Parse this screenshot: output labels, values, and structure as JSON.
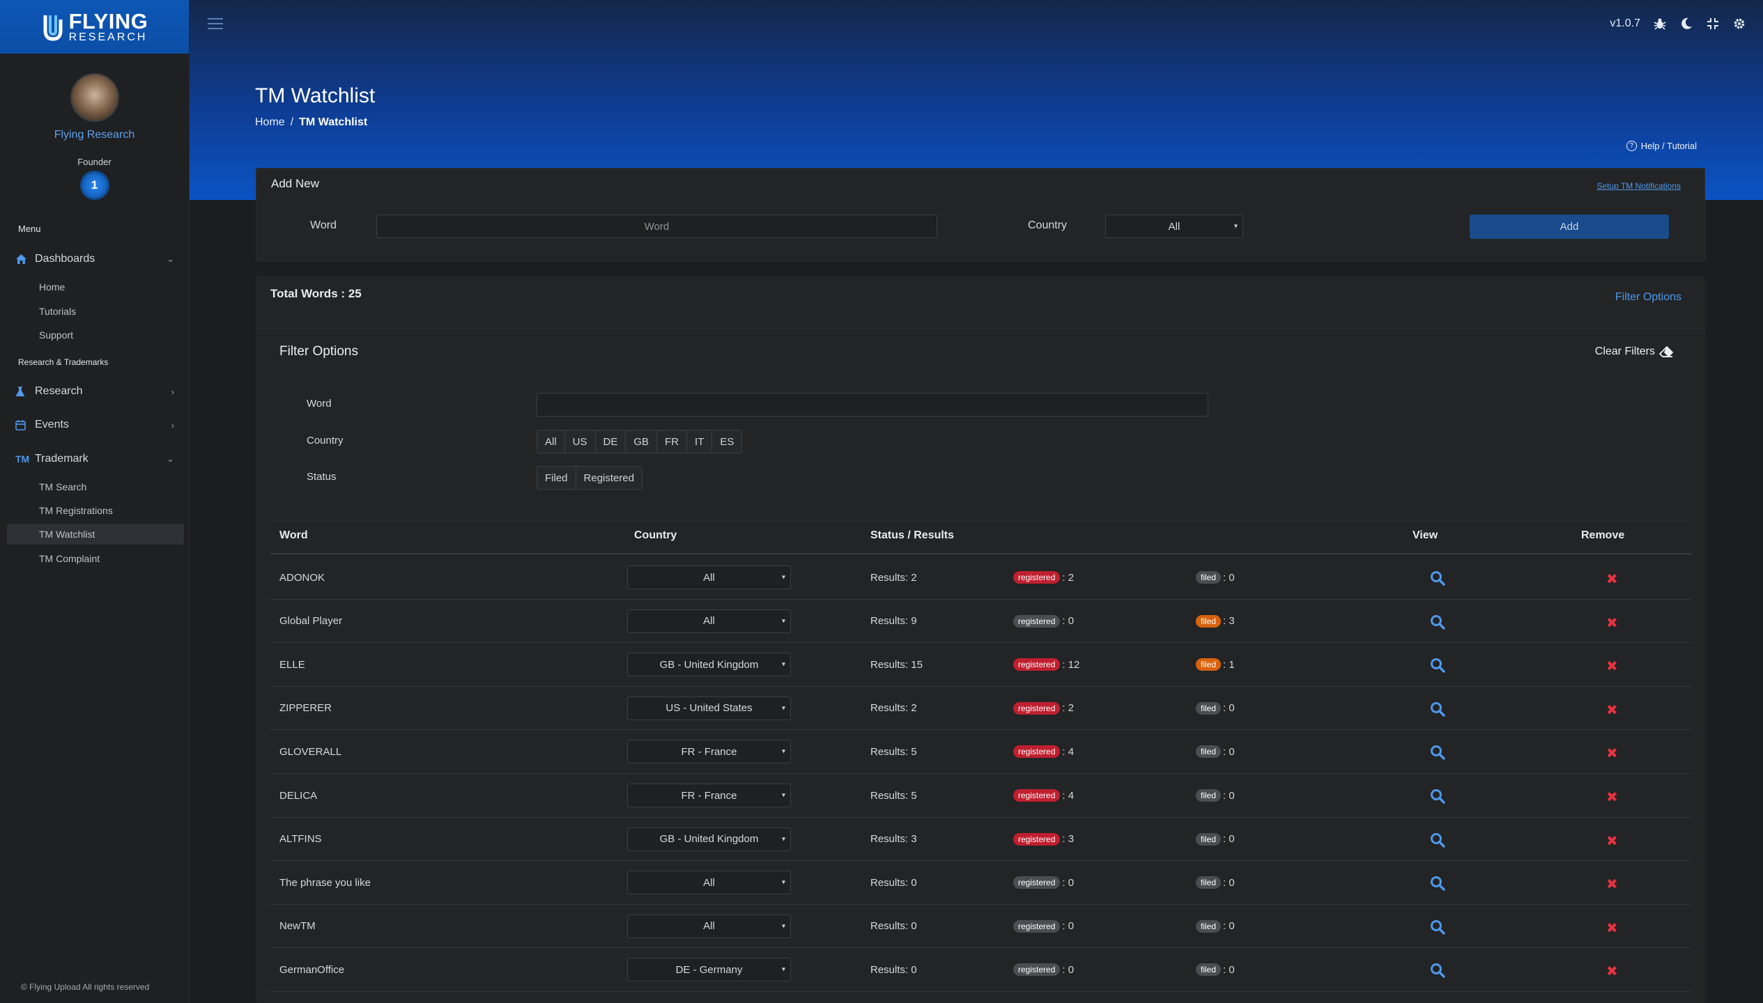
{
  "brand": {
    "line1": "FLYING",
    "line2": "RESEARCH"
  },
  "profile": {
    "name": "Flying Research",
    "role": "Founder",
    "level": "1"
  },
  "sidebar": {
    "menu_label": "Menu",
    "dashboards": "Dashboards",
    "home": "Home",
    "tutorials": "Tutorials",
    "support": "Support",
    "section_label": "Research & Trademarks",
    "research": "Research",
    "events": "Events",
    "trademark_icon": "TM",
    "trademark": "Trademark",
    "tm_search": "TM Search",
    "tm_registrations": "TM Registrations",
    "tm_watchlist": "TM Watchlist",
    "tm_complaint": "TM Complaint",
    "footer": "© Flying Upload All rights reserved"
  },
  "topbar": {
    "version": "v1.0.7"
  },
  "header": {
    "title": "TM Watchlist",
    "breadcrumb_home": "Home",
    "breadcrumb_sep": "/",
    "breadcrumb_current": "TM Watchlist",
    "help": "Help / Tutorial"
  },
  "add_new": {
    "title": "Add New",
    "setup_link": "Setup TM Notifications",
    "word_label": "Word",
    "word_placeholder": "Word",
    "country_label": "Country",
    "country_value": "All",
    "add_button": "Add"
  },
  "list": {
    "total": "Total Words : 25",
    "filter_toggle": "Filter Options"
  },
  "filters": {
    "title": "Filter Options",
    "clear": "Clear Filters",
    "word_label": "Word",
    "country_label": "Country",
    "countries": [
      "All",
      "US",
      "DE",
      "GB",
      "FR",
      "IT",
      "ES"
    ],
    "status_label": "Status",
    "statuses": [
      "Filed",
      "Registered"
    ]
  },
  "table": {
    "headers": {
      "word": "Word",
      "country": "Country",
      "status": "Status / Results",
      "view": "View",
      "remove": "Remove"
    },
    "badge_registered": "registered",
    "badge_filed": "filed",
    "rows": [
      {
        "word": "ADONOK",
        "country": "All",
        "results": "Results: 2",
        "registered": ": 2",
        "filed": ": 0",
        "reg_color": "red",
        "filed_color": "gray"
      },
      {
        "word": "Global Player",
        "country": "All",
        "results": "Results: 9",
        "registered": ": 0",
        "filed": ": 3",
        "reg_color": "gray",
        "filed_color": "orange"
      },
      {
        "word": "ELLE",
        "country": "GB - United Kingdom",
        "results": "Results: 15",
        "registered": ": 12",
        "filed": ": 1",
        "reg_color": "red",
        "filed_color": "orange"
      },
      {
        "word": "ZIPPERER",
        "country": "US - United States",
        "results": "Results: 2",
        "registered": ": 2",
        "filed": ": 0",
        "reg_color": "red",
        "filed_color": "gray"
      },
      {
        "word": "GLOVERALL",
        "country": "FR - France",
        "results": "Results: 5",
        "registered": ": 4",
        "filed": ": 0",
        "reg_color": "red",
        "filed_color": "gray"
      },
      {
        "word": "DELICA",
        "country": "FR - France",
        "results": "Results: 5",
        "registered": ": 4",
        "filed": ": 0",
        "reg_color": "red",
        "filed_color": "gray"
      },
      {
        "word": "ALTFINS",
        "country": "GB - United Kingdom",
        "results": "Results: 3",
        "registered": ": 3",
        "filed": ": 0",
        "reg_color": "red",
        "filed_color": "gray"
      },
      {
        "word": "The phrase you like",
        "country": "All",
        "results": "Results: 0",
        "registered": ": 0",
        "filed": ": 0",
        "reg_color": "gray",
        "filed_color": "gray"
      },
      {
        "word": "NewTM",
        "country": "All",
        "results": "Results: 0",
        "registered": ": 0",
        "filed": ": 0",
        "reg_color": "gray",
        "filed_color": "gray"
      },
      {
        "word": "GermanOffice",
        "country": "DE - Germany",
        "results": "Results: 0",
        "registered": ": 0",
        "filed": ": 0",
        "reg_color": "gray",
        "filed_color": "gray"
      }
    ]
  }
}
